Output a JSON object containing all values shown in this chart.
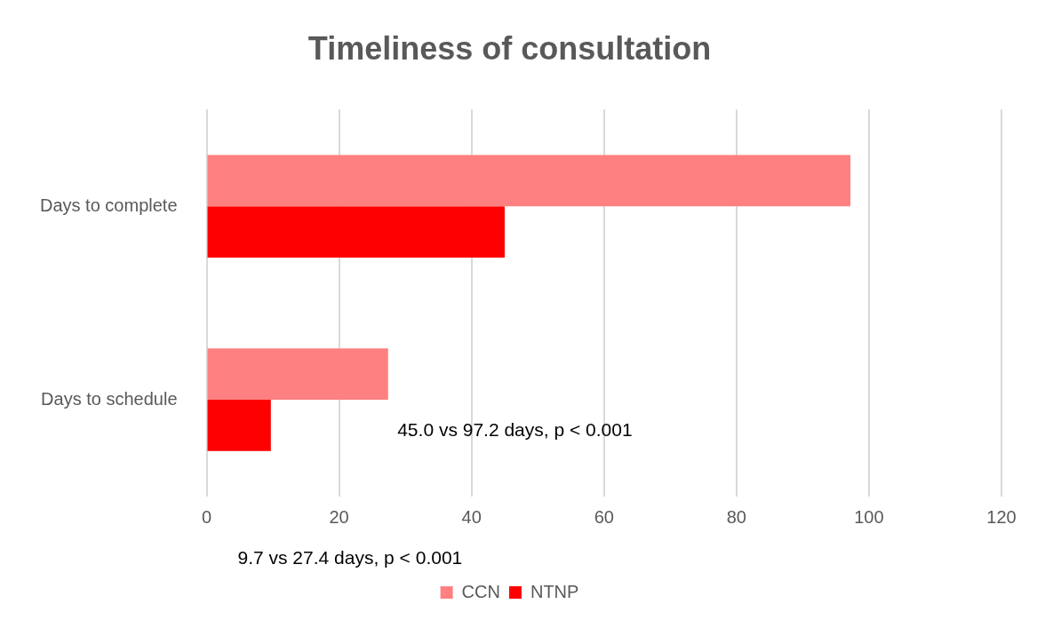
{
  "chart_data": {
    "type": "bar",
    "orientation": "horizontal",
    "title": "Timeliness of consultation",
    "categories": [
      "Days to complete",
      "Days to schedule"
    ],
    "series": [
      {
        "name": "CCN",
        "color": "#ff8080",
        "values": [
          97.2,
          27.4
        ]
      },
      {
        "name": "NTNP",
        "color": "#ff0000",
        "values": [
          45.0,
          9.7
        ]
      }
    ],
    "xlim": [
      0,
      120
    ],
    "xticks": [
      0,
      20,
      40,
      60,
      80,
      100,
      120
    ],
    "grid": "x",
    "legend": "bottom",
    "annotations": [
      "45.0 vs 97.2 days, p < 0.001",
      "9.7 vs 27.4 days, p < 0.001"
    ]
  }
}
